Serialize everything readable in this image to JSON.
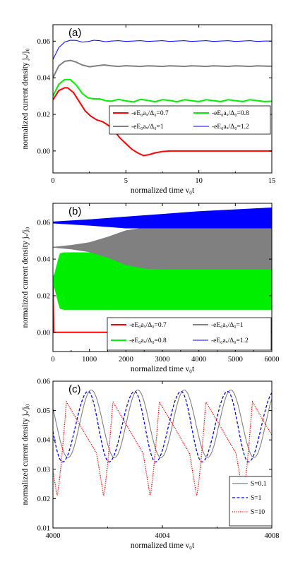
{
  "chart_data": [
    {
      "type": "line",
      "panel_label": "(a)",
      "xlabel": "normalized time ν₀t",
      "ylabel": "normalized current density jₓ/j₀",
      "xlim": [
        0,
        15
      ],
      "ylim": [
        -0.012,
        0.069
      ],
      "xticks": [
        0,
        5,
        10,
        15
      ],
      "yticks": [
        0.0,
        0.02,
        0.04,
        0.06
      ],
      "ytick_labels": [
        "0.00",
        "0.02",
        "0.04",
        "0.06"
      ],
      "grid": false,
      "legend_position": "right, middle",
      "legend_columns": 2,
      "series": [
        {
          "name": "-eE₀aₓ/Δ₀=0.7",
          "color": "#ff0000",
          "x": [
            0,
            0.4,
            0.8,
            1.0,
            1.4,
            1.8,
            2.2,
            2.6,
            3.0,
            3.4,
            3.8,
            4.2,
            4.6,
            5.0,
            5.4,
            5.8,
            6.2,
            6.6,
            7.0,
            7.5,
            8.0,
            9,
            10,
            11,
            12,
            13,
            14,
            15
          ],
          "y": [
            0.028,
            0.033,
            0.0345,
            0.0345,
            0.032,
            0.027,
            0.022,
            0.019,
            0.017,
            0.016,
            0.014,
            0.011,
            0.007,
            0.004,
            0.001,
            -0.001,
            -0.0025,
            -0.002,
            -0.001,
            -0.0003,
            0.0,
            0.0,
            0.0,
            0.0,
            0.0,
            0.0,
            0.0,
            0.0
          ]
        },
        {
          "name": "-eE₀aₓ/Δ₀=1",
          "color": "#808080",
          "x": [
            0,
            0.4,
            0.8,
            1.2,
            1.6,
            2.0,
            2.5,
            3.0,
            3.5,
            4.0,
            4.5,
            5.0,
            5.5,
            6.0,
            6.5,
            7.0,
            7.5,
            8.0,
            8.5,
            9.0,
            9.5,
            10,
            10.5,
            11,
            11.5,
            12,
            12.5,
            13,
            13.5,
            14,
            14.5,
            15
          ],
          "y": [
            0.04,
            0.0465,
            0.049,
            0.0495,
            0.0485,
            0.047,
            0.046,
            0.0465,
            0.047,
            0.0465,
            0.0462,
            0.0466,
            0.0464,
            0.0462,
            0.0465,
            0.0464,
            0.0462,
            0.0465,
            0.0464,
            0.0462,
            0.0465,
            0.0464,
            0.0462,
            0.0465,
            0.0464,
            0.0462,
            0.0465,
            0.0464,
            0.0462,
            0.0465,
            0.0464,
            0.0463
          ]
        },
        {
          "name": "-eE₀aₓ/Δ₀=0.8",
          "color": "#00ee00",
          "x": [
            0,
            0.4,
            0.8,
            1.2,
            1.6,
            2.0,
            2.4,
            2.8,
            3.2,
            3.6,
            4.0,
            4.5,
            5.0,
            5.5,
            6.0,
            6.5,
            7.0,
            7.5,
            8.0,
            8.5,
            9.0,
            9.5,
            10,
            10.5,
            11,
            11.5,
            12,
            12.5,
            13,
            13.5,
            14,
            14.5,
            15
          ],
          "y": [
            0.03,
            0.0365,
            0.039,
            0.039,
            0.036,
            0.0315,
            0.029,
            0.0285,
            0.0285,
            0.0275,
            0.0272,
            0.0282,
            0.0274,
            0.0268,
            0.0282,
            0.0276,
            0.0269,
            0.028,
            0.0276,
            0.0269,
            0.028,
            0.0275,
            0.027,
            0.028,
            0.0275,
            0.027,
            0.028,
            0.0275,
            0.027,
            0.028,
            0.0275,
            0.027,
            0.0272
          ]
        },
        {
          "name": "-eE₀aₓ/Δ₀=1.2",
          "color": "#0000ff",
          "x": [
            0,
            0.4,
            0.8,
            1.2,
            1.6,
            2.0,
            2.4,
            2.8,
            3.2,
            3.6,
            4.0,
            4.5,
            5.0,
            5.5,
            6.0,
            6.5,
            7.0,
            7.5,
            8.0,
            8.5,
            9.0,
            9.5,
            10,
            10.5,
            11,
            11.5,
            12,
            12.5,
            13,
            13.5,
            14,
            14.5,
            15
          ],
          "y": [
            0.05,
            0.0565,
            0.0595,
            0.0605,
            0.0604,
            0.0595,
            0.0598,
            0.0605,
            0.0603,
            0.0597,
            0.0601,
            0.0603,
            0.0599,
            0.0601,
            0.0603,
            0.0599,
            0.0601,
            0.0603,
            0.0599,
            0.0601,
            0.0603,
            0.0599,
            0.0601,
            0.0603,
            0.0599,
            0.0601,
            0.0603,
            0.0599,
            0.0601,
            0.0603,
            0.0599,
            0.0601,
            0.0601
          ]
        }
      ]
    },
    {
      "type": "area",
      "panel_label": "(b)",
      "xlabel": "normalized time ν₀t",
      "ylabel": "normalized current density jₓ/j₀",
      "xlim": [
        0,
        6000
      ],
      "ylim": [
        -0.0105,
        0.0705
      ],
      "xticks": [
        0,
        1000,
        2000,
        3000,
        4000,
        5000,
        6000
      ],
      "yticks": [
        0.0,
        0.02,
        0.04,
        0.06
      ],
      "ytick_labels": [
        "0.00",
        "0.02",
        "0.04",
        "0.06"
      ],
      "grid": false,
      "legend_position": "bottom-right",
      "legend_columns": 2,
      "series": [
        {
          "name": "-eE₀aₓ/Δ₀=0.7",
          "color": "#ff0000",
          "x": [
            0,
            20,
            6000
          ],
          "upper": [
            0.028,
            0.0,
            0.0
          ],
          "lower": [
            0.0,
            0.0,
            0.0
          ]
        },
        {
          "name": "-eE₀aₓ/Δ₀=0.8",
          "color": "#00ee00",
          "x": [
            0,
            50,
            100,
            150,
            200,
            300,
            500,
            1000,
            2000,
            3000,
            4000,
            5000,
            6000
          ],
          "upper": [
            0.03,
            0.032,
            0.036,
            0.04,
            0.043,
            0.0435,
            0.0435,
            0.0435,
            0.0435,
            0.0435,
            0.0435,
            0.0435,
            0.0435
          ],
          "lower": [
            0.026,
            0.024,
            0.02,
            0.016,
            0.013,
            0.0125,
            0.0125,
            0.0125,
            0.0125,
            0.0125,
            0.0125,
            0.0125,
            0.0125
          ]
        },
        {
          "name": "-eE₀aₓ/Δ₀=1",
          "color": "#808080",
          "x": [
            0,
            500,
            1000,
            1500,
            2000,
            2500,
            3000,
            4000,
            5000,
            6000
          ],
          "upper": [
            0.0465,
            0.0475,
            0.049,
            0.052,
            0.0555,
            0.057,
            0.0575,
            0.0575,
            0.0575,
            0.0575
          ],
          "lower": [
            0.0465,
            0.0455,
            0.044,
            0.041,
            0.037,
            0.035,
            0.0345,
            0.0345,
            0.0345,
            0.0345
          ]
        },
        {
          "name": "-eE₀aₓ/Δ₀=1.2",
          "color": "#0000ff",
          "x": [
            0,
            1000,
            2000,
            3000,
            4000,
            5000,
            6000
          ],
          "upper": [
            0.0603,
            0.0615,
            0.063,
            0.0645,
            0.066,
            0.067,
            0.068
          ],
          "lower": [
            0.0597,
            0.0585,
            0.057,
            0.057,
            0.057,
            0.057,
            0.057
          ]
        }
      ]
    },
    {
      "type": "line",
      "panel_label": "(c)",
      "xlabel": "normalized time ν₀t",
      "ylabel": "normalized current density jₓ/j₀",
      "xlim": [
        4000,
        4008
      ],
      "ylim": [
        0.01,
        0.06
      ],
      "xticks": [
        4000,
        4004,
        4008
      ],
      "yticks": [
        0.01,
        0.02,
        0.03,
        0.04,
        0.05,
        0.06
      ],
      "ytick_labels": [
        "0.01",
        "0.02",
        "0.03",
        "0.04",
        "0.05",
        "0.06"
      ],
      "grid": false,
      "legend_position": "bottom-right",
      "legend_columns": 1,
      "series": [
        {
          "name": "S=0.1",
          "color": "#808080",
          "style": "solid",
          "period": 1.7,
          "phase": 4000.55,
          "min": 0.034,
          "max": 0.057,
          "shape": "sine"
        },
        {
          "name": "S=1",
          "color": "#0000ff",
          "style": "dashed",
          "period": 1.7,
          "phase": 4000.35,
          "min": 0.0325,
          "max": 0.0565,
          "shape": "skewed"
        },
        {
          "name": "S=10",
          "color": "#ff0000",
          "style": "dotted",
          "period": 1.7,
          "phase": 4000.15,
          "min": 0.021,
          "max": 0.053,
          "shape": "sawtooth"
        }
      ]
    }
  ]
}
